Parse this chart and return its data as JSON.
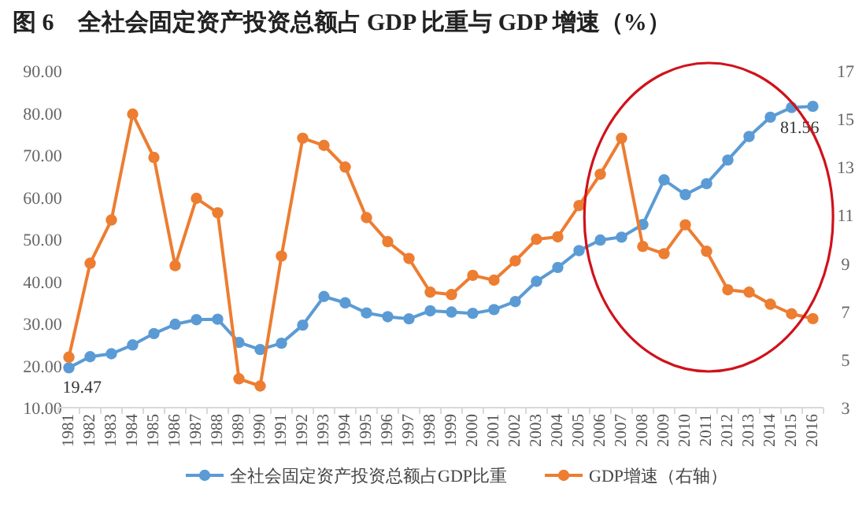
{
  "chart_data": {
    "type": "line",
    "title": "图 6　全社会固定资产投资总额占 GDP 比重与 GDP 增速（%）",
    "categories": [
      "1981",
      "1982",
      "1983",
      "1984",
      "1985",
      "1986",
      "1987",
      "1988",
      "1989",
      "1990",
      "1991",
      "1992",
      "1993",
      "1994",
      "1995",
      "1996",
      "1997",
      "1998",
      "1999",
      "2000",
      "2001",
      "2002",
      "2003",
      "2004",
      "2005",
      "2006",
      "2007",
      "2008",
      "2009",
      "2010",
      "2011",
      "2012",
      "2013",
      "2014",
      "2015",
      "2016"
    ],
    "series": [
      {
        "name": "全社会固定资产投资总额占GDP比重",
        "color": "#5b9bd5",
        "values": [
          19.47,
          22.1,
          22.8,
          24.9,
          27.6,
          29.8,
          30.9,
          31.0,
          25.5,
          23.8,
          25.3,
          29.6,
          36.4,
          34.9,
          32.5,
          31.6,
          31.1,
          33.0,
          32.7,
          32.4,
          33.3,
          35.2,
          40.0,
          43.3,
          47.3,
          49.8,
          50.5,
          53.5,
          64.1,
          60.6,
          63.2,
          68.8,
          74.4,
          79.0,
          81.3,
          81.56
        ],
        "value_labels": [
          "19.47",
          null,
          null,
          null,
          null,
          null,
          null,
          null,
          null,
          null,
          null,
          null,
          null,
          null,
          null,
          null,
          null,
          null,
          null,
          null,
          null,
          null,
          null,
          null,
          null,
          null,
          null,
          null,
          null,
          null,
          null,
          null,
          null,
          null,
          null,
          "81.56"
        ]
      },
      {
        "name": "GDP增速（右轴）",
        "color": "#ed7d31",
        "axis": "y2",
        "values": [
          5.1,
          9.0,
          10.8,
          15.2,
          13.4,
          8.9,
          11.7,
          11.1,
          4.2,
          3.9,
          9.3,
          14.2,
          13.9,
          13.0,
          10.9,
          9.9,
          9.2,
          7.8,
          7.7,
          8.5,
          8.3,
          9.1,
          10.0,
          10.1,
          11.4,
          12.7,
          14.2,
          9.7,
          9.4,
          10.6,
          9.5,
          7.9,
          7.8,
          7.3,
          6.9,
          6.7
        ]
      }
    ],
    "ylim": [
      10,
      90
    ],
    "yticks": [
      {
        "value": 10,
        "label": "10.00"
      },
      {
        "value": 20,
        "label": "20.00"
      },
      {
        "value": 30,
        "label": "30.00"
      },
      {
        "value": 40,
        "label": "40.00"
      },
      {
        "value": 50,
        "label": "50.00"
      },
      {
        "value": 60,
        "label": "60.00"
      },
      {
        "value": 70,
        "label": "70.00"
      },
      {
        "value": 80,
        "label": "80.00"
      },
      {
        "value": 90,
        "label": "90.00"
      }
    ],
    "y2lim": [
      3,
      17
    ],
    "y2ticks": [
      3,
      5,
      7,
      9,
      11,
      13,
      15,
      17
    ],
    "grid": false,
    "legend": "bottom",
    "marker": "circle",
    "line_style": "solid"
  }
}
